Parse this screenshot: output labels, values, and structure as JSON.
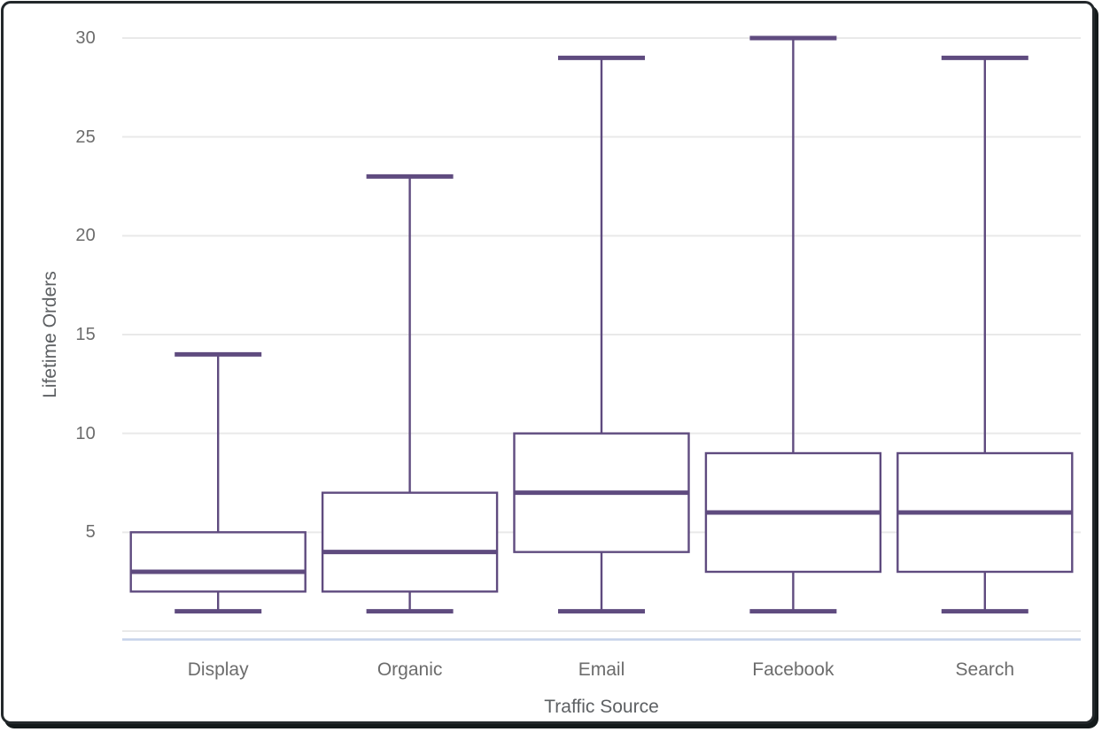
{
  "window": {
    "background": "#ffffff",
    "frame_border_color": "#23282b"
  },
  "chart_data": {
    "type": "boxplot",
    "title": "",
    "xlabel": "Traffic Source",
    "ylabel": "Lifetime Orders",
    "categories": [
      "Display",
      "Organic",
      "Email",
      "Facebook",
      "Search"
    ],
    "series": [
      {
        "name": "Lifetime Orders",
        "boxes": [
          {
            "category": "Display",
            "min": 1,
            "q1": 2,
            "median": 3,
            "q3": 5,
            "max": 14
          },
          {
            "category": "Organic",
            "min": 1,
            "q1": 2,
            "median": 4,
            "q3": 7,
            "max": 23
          },
          {
            "category": "Email",
            "min": 1,
            "q1": 4,
            "median": 7,
            "q3": 10,
            "max": 29
          },
          {
            "category": "Facebook",
            "min": 1,
            "q1": 3,
            "median": 6,
            "q3": 9,
            "max": 30
          },
          {
            "category": "Search",
            "min": 1,
            "q1": 3,
            "median": 6,
            "q3": 9,
            "max": 29
          }
        ]
      }
    ],
    "ylim": [
      0,
      30
    ],
    "yticks": [
      5,
      10,
      15,
      20,
      25,
      30
    ],
    "grid": true,
    "legend": "none",
    "colors": {
      "box_stroke": "#5f4b7f",
      "box_fill": "#ffffff",
      "gridline": "#e9e9e9",
      "axis_line": "#c5d2ea",
      "tick_label": "#6c6c6c",
      "axis_title": "#5d6063"
    }
  }
}
